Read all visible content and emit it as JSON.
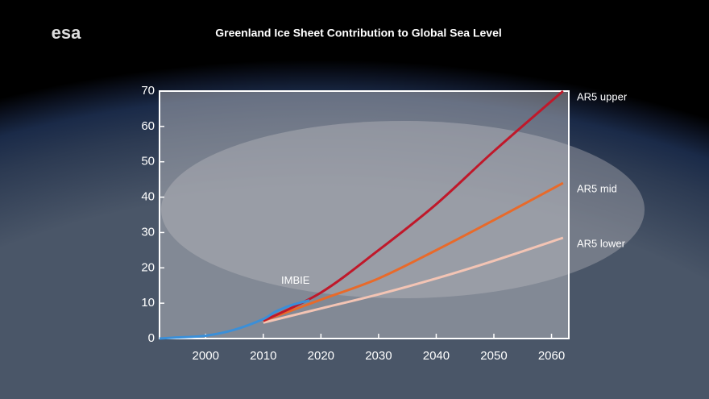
{
  "logo": "esa",
  "chart_data": {
    "type": "line",
    "title": "Greenland Ice Sheet Contribution to Global Sea Level",
    "xlim": [
      1992,
      2063
    ],
    "xticks": [
      2000,
      2010,
      2020,
      2030,
      2040,
      2050,
      2060
    ],
    "ylim": [
      0,
      70
    ],
    "yticks": [
      0,
      10,
      20,
      30,
      40,
      50,
      60,
      70
    ],
    "series": [
      {
        "name": "IMBIE",
        "color": "#3b8fd8",
        "x": [
          1992,
          1995,
          2000,
          2005,
          2010,
          2012,
          2015,
          2018
        ],
        "values": [
          0,
          0.3,
          0.8,
          2.5,
          5.5,
          7.5,
          9.5,
          10.8
        ]
      },
      {
        "name": "AR5 upper",
        "color": "#c0182a",
        "x": [
          2010,
          2020,
          2030,
          2040,
          2050,
          2062
        ],
        "values": [
          5,
          13,
          25,
          38,
          53,
          70
        ]
      },
      {
        "name": "AR5 mid",
        "color": "#e86a2a",
        "x": [
          2010,
          2020,
          2030,
          2040,
          2050,
          2062
        ],
        "values": [
          5,
          11,
          17,
          25,
          33.5,
          44
        ]
      },
      {
        "name": "AR5 lower",
        "color": "#f3c4b4",
        "x": [
          2010,
          2020,
          2030,
          2040,
          2050,
          2062
        ],
        "values": [
          4.5,
          8.5,
          12.5,
          17,
          22,
          28.5
        ]
      }
    ]
  }
}
